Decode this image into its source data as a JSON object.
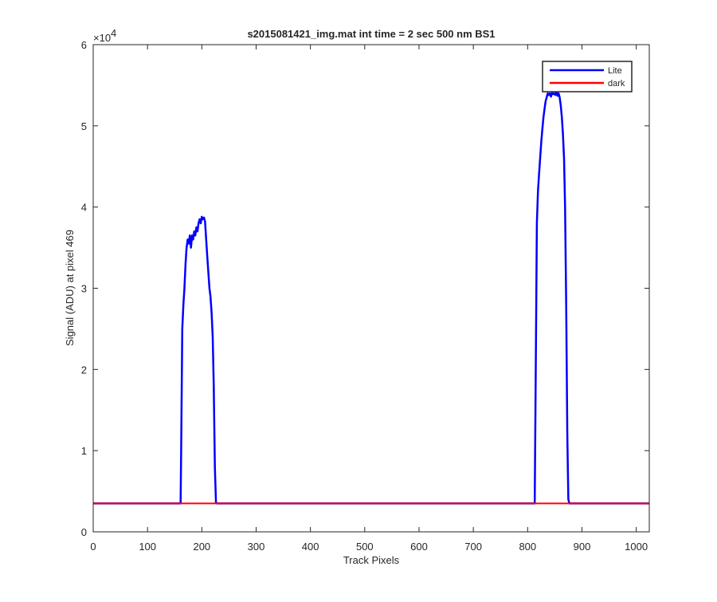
{
  "chart_data": {
    "type": "line",
    "title": "s2015081421_img.mat int time = 2 sec  500 nm BS1",
    "xlabel": "Track Pixels",
    "ylabel": "Signal (ADU) at pixel 469",
    "xlim": [
      0,
      1024
    ],
    "ylim": [
      0,
      60000
    ],
    "y_exponent_label": "×10",
    "y_exponent_power": "4",
    "x_ticks": [
      0,
      100,
      200,
      300,
      400,
      500,
      600,
      700,
      800,
      900,
      1000
    ],
    "y_ticks": [
      0,
      10000,
      20000,
      30000,
      40000,
      50000,
      60000
    ],
    "x_tick_labels": [
      "0",
      "100",
      "200",
      "300",
      "400",
      "500",
      "600",
      "700",
      "800",
      "900",
      "1000"
    ],
    "y_tick_labels": [
      "0",
      "1",
      "2",
      "3",
      "4",
      "5",
      "6"
    ],
    "grid": false,
    "legend_position": "top-right",
    "series": [
      {
        "name": "Lite",
        "color": "#0000ff",
        "x": [
          0,
          161,
          162,
          164,
          166,
          168,
          170,
          172,
          174,
          176,
          178,
          180,
          182,
          184,
          186,
          188,
          190,
          192,
          194,
          196,
          198,
          200,
          202,
          204,
          206,
          208,
          210,
          212,
          214,
          216,
          218,
          220,
          222,
          224,
          226,
          228,
          1024
        ],
        "y": [
          3500,
          3500,
          10000,
          25000,
          28000,
          30000,
          33000,
          35000,
          36000,
          35500,
          36500,
          35000,
          36500,
          36000,
          37000,
          36500,
          37500,
          37000,
          38000,
          38500,
          38000,
          38800,
          38500,
          38700,
          38200,
          36000,
          34000,
          32000,
          30000,
          29000,
          27000,
          24000,
          18000,
          8000,
          3600,
          3500,
          3500
        ],
        "x_peak2": [
          810,
          813,
          815,
          817,
          819,
          821,
          823,
          825,
          827,
          829,
          831,
          833,
          835,
          837,
          839,
          841,
          843,
          845,
          847,
          849,
          851,
          853,
          855,
          857,
          859,
          861,
          863,
          865,
          867,
          869,
          871,
          873,
          875,
          877
        ],
        "y_peak2": [
          3500,
          3500,
          20000,
          38000,
          42000,
          44000,
          46000,
          48000,
          49500,
          51000,
          52000,
          53000,
          53500,
          54000,
          53800,
          54000,
          53600,
          54100,
          53900,
          54000,
          53800,
          54200,
          53700,
          54000,
          53500,
          52500,
          51000,
          49000,
          46000,
          40000,
          28000,
          12000,
          4000,
          3500
        ]
      },
      {
        "name": "dark",
        "color": "#ff0000",
        "x": [
          0,
          1024
        ],
        "y": [
          3500,
          3500
        ]
      }
    ]
  }
}
